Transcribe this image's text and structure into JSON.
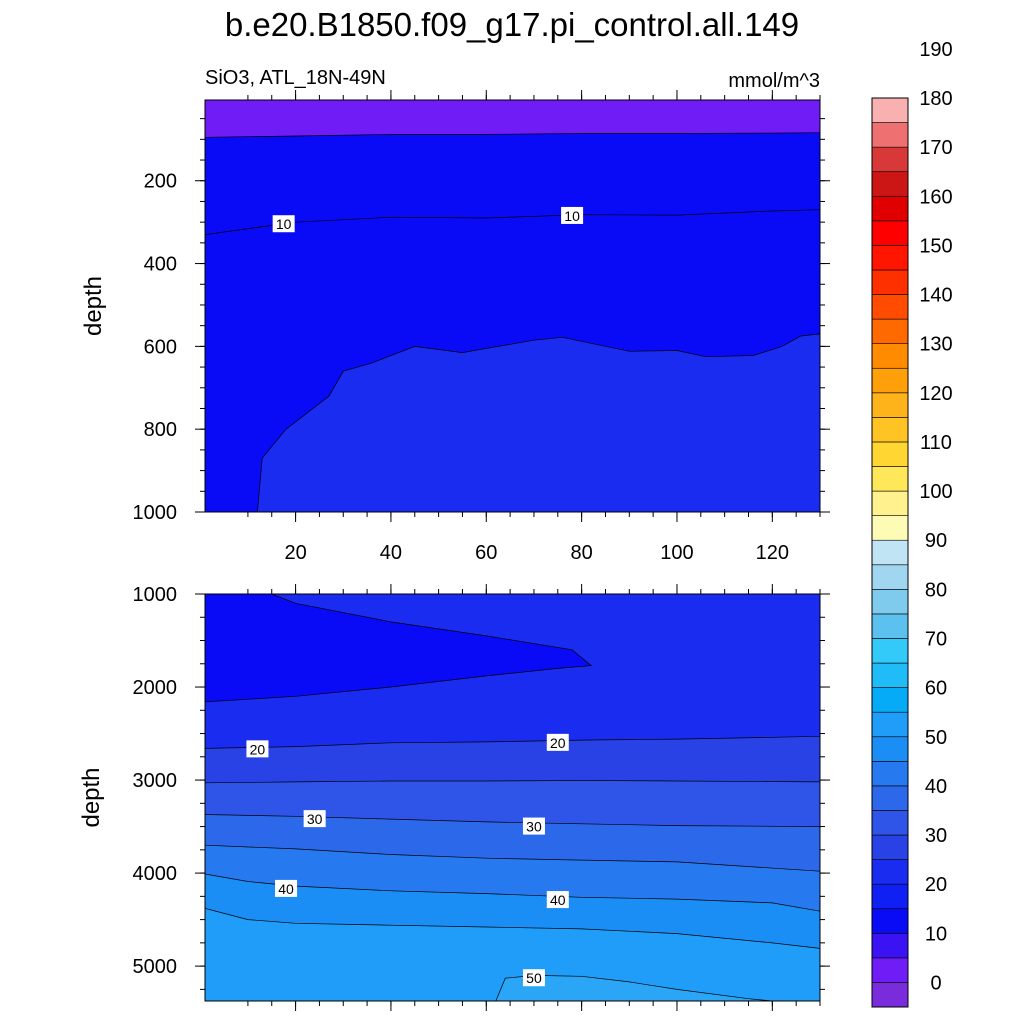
{
  "title": "b.e20.B1850.f09_g17.pi_control.all.149",
  "subtitle_left": "SiO3, ATL_18N-49N",
  "subtitle_right": "mmol/m^3",
  "colors": {
    "band_lt10": "#6f1cf6",
    "band_10_20": "#0a0bf6",
    "band_20_25": "#1a2cf0",
    "band_25_30": "#2942e6",
    "band_30_35": "#2f54e8",
    "band_35_40": "#2c68ea",
    "band_40_45": "#2679ee",
    "band_45_50": "#1b8ef6",
    "band_50_55": "#1f9df8",
    "contour_line": "#000000"
  },
  "chart_data": [
    {
      "type": "contour",
      "panel": "upper",
      "xlabel": "",
      "ylabel": "depth",
      "xlim": [
        1,
        130
      ],
      "ylim": [
        1000,
        5
      ],
      "y_inverted": true,
      "x_ticks": [
        20,
        40,
        60,
        80,
        100,
        120
      ],
      "y_ticks": [
        200,
        400,
        600,
        800,
        1000
      ],
      "contour_labels": [
        {
          "text": "10",
          "x": 17.5,
          "y": 305
        },
        {
          "text": "10",
          "x": 78,
          "y": 285
        }
      ],
      "isolines": [
        {
          "value": 5,
          "points": [
            [
              1,
              95
            ],
            [
              20,
              92
            ],
            [
              40,
              88
            ],
            [
              60,
              88
            ],
            [
              80,
              86
            ],
            [
              100,
              86
            ],
            [
              120,
              85
            ],
            [
              130,
              84
            ]
          ]
        },
        {
          "value": 10,
          "points": [
            [
              1,
              330
            ],
            [
              20,
              300
            ],
            [
              40,
              288
            ],
            [
              60,
              290
            ],
            [
              80,
              282
            ],
            [
              100,
              283
            ],
            [
              120,
              273
            ],
            [
              130,
              270
            ]
          ]
        },
        {
          "value": 15,
          "points": [
            [
              12,
              1000
            ],
            [
              13,
              870
            ],
            [
              18,
              800
            ],
            [
              27,
              720
            ],
            [
              30,
              660
            ],
            [
              36,
              640
            ],
            [
              45,
              600
            ],
            [
              55,
              615
            ],
            [
              60,
              605
            ],
            [
              70,
              585
            ],
            [
              76,
              578
            ],
            [
              90,
              612
            ],
            [
              100,
              610
            ],
            [
              106,
              625
            ],
            [
              116,
              622
            ],
            [
              122,
              600
            ],
            [
              126,
              575
            ],
            [
              130,
              570
            ]
          ]
        }
      ]
    },
    {
      "type": "contour",
      "panel": "lower",
      "xlabel": "",
      "ylabel": "depth",
      "xlim": [
        1,
        130
      ],
      "ylim": [
        5375,
        1000
      ],
      "y_inverted": true,
      "y_ticks": [
        1000,
        2000,
        3000,
        4000,
        5000
      ],
      "contour_labels": [
        {
          "text": "20",
          "x": 12,
          "y": 2670
        },
        {
          "text": "20",
          "x": 75,
          "y": 2600
        },
        {
          "text": "30",
          "x": 24,
          "y": 3420
        },
        {
          "text": "30",
          "x": 70,
          "y": 3500
        },
        {
          "text": "40",
          "x": 18,
          "y": 4170
        },
        {
          "text": "40",
          "x": 75,
          "y": 4290
        },
        {
          "text": "50",
          "x": 70,
          "y": 5130
        }
      ],
      "isolines": [
        {
          "value": 15,
          "points": [
            [
              1,
              2160
            ],
            [
              20,
              2100
            ],
            [
              40,
              2000
            ],
            [
              60,
              1880
            ],
            [
              75,
              1800
            ],
            [
              82,
              1770
            ],
            [
              78,
              1600
            ],
            [
              60,
              1450
            ],
            [
              40,
              1300
            ],
            [
              20,
              1100
            ],
            [
              15,
              1000
            ]
          ]
        },
        {
          "value": 20,
          "points": [
            [
              1,
              2660
            ],
            [
              20,
              2640
            ],
            [
              40,
              2600
            ],
            [
              60,
              2590
            ],
            [
              80,
              2570
            ],
            [
              100,
              2560
            ],
            [
              120,
              2540
            ],
            [
              130,
              2530
            ]
          ]
        },
        {
          "value": 25,
          "points": [
            [
              1,
              3030
            ],
            [
              20,
              3020
            ],
            [
              40,
              3010
            ],
            [
              60,
              3010
            ],
            [
              80,
              3005
            ],
            [
              100,
              3010
            ],
            [
              130,
              3020
            ]
          ]
        },
        {
          "value": 30,
          "points": [
            [
              1,
              3370
            ],
            [
              20,
              3390
            ],
            [
              40,
              3420
            ],
            [
              60,
              3450
            ],
            [
              80,
              3470
            ],
            [
              100,
              3490
            ],
            [
              130,
              3500
            ]
          ]
        },
        {
          "value": 35,
          "points": [
            [
              1,
              3700
            ],
            [
              20,
              3740
            ],
            [
              40,
              3800
            ],
            [
              60,
              3840
            ],
            [
              80,
              3860
            ],
            [
              100,
              3880
            ],
            [
              130,
              3980
            ]
          ]
        },
        {
          "value": 40,
          "points": [
            [
              1,
              4010
            ],
            [
              10,
              4090
            ],
            [
              20,
              4140
            ],
            [
              40,
              4190
            ],
            [
              60,
              4220
            ],
            [
              80,
              4260
            ],
            [
              100,
              4280
            ],
            [
              120,
              4320
            ],
            [
              130,
              4410
            ]
          ]
        },
        {
          "value": 45,
          "points": [
            [
              1,
              4380
            ],
            [
              10,
              4500
            ],
            [
              20,
              4540
            ],
            [
              40,
              4560
            ],
            [
              60,
              4580
            ],
            [
              80,
              4600
            ],
            [
              100,
              4650
            ],
            [
              120,
              4750
            ],
            [
              130,
              4810
            ]
          ]
        },
        {
          "value": 50,
          "points": [
            [
              62,
              5375
            ],
            [
              64,
              5130
            ],
            [
              70,
              5100
            ],
            [
              80,
              5110
            ],
            [
              90,
              5170
            ],
            [
              100,
              5250
            ],
            [
              115,
              5350
            ],
            [
              120,
              5375
            ]
          ]
        }
      ]
    },
    {
      "type": "colorbar",
      "orientation": "vertical",
      "labels": [
        "0",
        "10",
        "20",
        "30",
        "40",
        "50",
        "60",
        "70",
        "80",
        "90",
        "100",
        "110",
        "120",
        "130",
        "140",
        "150",
        "160",
        "170",
        "180",
        "190"
      ],
      "colors": [
        "#7a2bdc",
        "#6f1cf6",
        "#3a12f3",
        "#0a0bf6",
        "#1020f4",
        "#1a2cf0",
        "#2942e6",
        "#2f54e8",
        "#2c68ea",
        "#2679ee",
        "#1b8ef6",
        "#1f9df8",
        "#05abf6",
        "#20bcf8",
        "#33c9f8",
        "#5cc1ee",
        "#7fcbee",
        "#a1d6f0",
        "#c0e4f4",
        "#fdfbb6",
        "#fff18d",
        "#ffe75a",
        "#ffd632",
        "#ffc423",
        "#ffb31a",
        "#ffa00a",
        "#ff8c00",
        "#ff6a00",
        "#ff4c00",
        "#ff3000",
        "#ff1500",
        "#ff0000",
        "#e00000",
        "#cc1515",
        "#d83838",
        "#ee7070",
        "#f8b0b0"
      ]
    }
  ]
}
